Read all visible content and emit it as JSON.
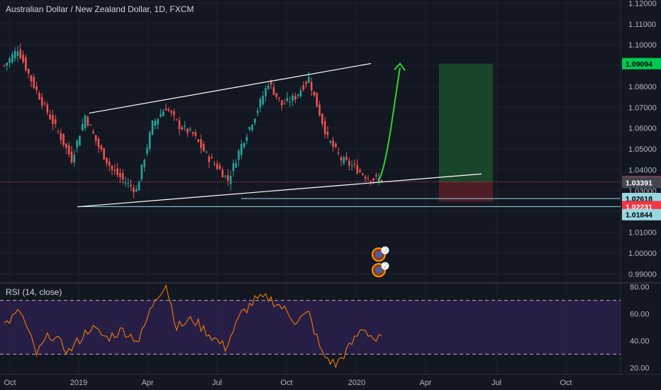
{
  "header": {
    "title": "Australian Dollar / New Zealand Dollar, 1D, FXCM"
  },
  "rsi": {
    "title": "RSI (14, close)"
  },
  "colors": {
    "background": "#131722",
    "grid": "#1e2230",
    "up": "#26a69a",
    "down": "#ef5350",
    "rsi_line": "#f57c00",
    "rsi_band": "#2a1f4a",
    "trend": "#ffffff",
    "arrow": "#2bd62b",
    "target_zone": "#1b4d2b",
    "stop_zone": "#5a1e27"
  },
  "chart_data": [
    {
      "type": "candlestick",
      "title": "Australian Dollar / New Zealand Dollar, 1D, FXCM",
      "x_tick_labels": [
        "Oct",
        "2019",
        "Apr",
        "Jul",
        "Oct",
        "2020",
        "Apr",
        "Jul",
        "Oct"
      ],
      "y_tick_labels": [
        "1.12000",
        "1.11000",
        "1.10000",
        "1.09000",
        "1.08000",
        "1.07000",
        "1.06000",
        "1.05000",
        "1.04000",
        "1.03000",
        "1.02000",
        "1.01000",
        "1.00000",
        "0.99000"
      ],
      "ylim": [
        0.986,
        1.1215
      ],
      "price_tags": [
        {
          "label": "1.09094",
          "value": 1.09094,
          "bg": "#00c853",
          "fg": "#000000"
        },
        {
          "label": "1.03417",
          "value": 1.03417,
          "bg": "#f7525f",
          "fg": "#ffffff"
        },
        {
          "label": "1.03391",
          "value": 1.03391,
          "bg": "#434651",
          "fg": "#ffffff"
        },
        {
          "label": "1.02618",
          "value": 1.02618,
          "bg": "#9ad6e0",
          "fg": "#000000"
        },
        {
          "label": "1.02231",
          "value": 1.02231,
          "bg": "#f23645",
          "fg": "#ffffff"
        },
        {
          "label": "1.01844",
          "value": 1.01844,
          "bg": "#9ad6e0",
          "fg": "#000000"
        }
      ],
      "anchors": [
        {
          "i": 0,
          "v": 1.09
        },
        {
          "i": 5,
          "v": 1.098
        },
        {
          "i": 10,
          "v": 1.083
        },
        {
          "i": 15,
          "v": 1.07
        },
        {
          "i": 20,
          "v": 1.058
        },
        {
          "i": 25,
          "v": 1.045
        },
        {
          "i": 30,
          "v": 1.066
        },
        {
          "i": 35,
          "v": 1.051
        },
        {
          "i": 40,
          "v": 1.04
        },
        {
          "i": 45,
          "v": 1.034
        },
        {
          "i": 49,
          "v": 1.03
        },
        {
          "i": 55,
          "v": 1.062
        },
        {
          "i": 60,
          "v": 1.07
        },
        {
          "i": 65,
          "v": 1.061
        },
        {
          "i": 70,
          "v": 1.057
        },
        {
          "i": 75,
          "v": 1.047
        },
        {
          "i": 80,
          "v": 1.04
        },
        {
          "i": 83,
          "v": 1.035
        },
        {
          "i": 88,
          "v": 1.052
        },
        {
          "i": 93,
          "v": 1.066
        },
        {
          "i": 98,
          "v": 1.082
        },
        {
          "i": 103,
          "v": 1.071
        },
        {
          "i": 108,
          "v": 1.075
        },
        {
          "i": 113,
          "v": 1.084
        },
        {
          "i": 115,
          "v": 1.075
        },
        {
          "i": 120,
          "v": 1.055
        },
        {
          "i": 125,
          "v": 1.045
        },
        {
          "i": 130,
          "v": 1.041
        },
        {
          "i": 135,
          "v": 1.036
        },
        {
          "i": 140,
          "v": 1.035
        }
      ],
      "drawings": {
        "upper_channel": [
          [
            1.0672,
            1.091
          ]
        ],
        "lower_channel": [
          [
            1.0222,
            1.038
          ]
        ],
        "target_level": 1.09094,
        "entry_level": 1.03417,
        "stop_level": 1.02618
      },
      "events": [
        {
          "badge": "3"
        },
        {
          "badge": "2"
        }
      ]
    },
    {
      "type": "line",
      "title": "RSI (14, close)",
      "y_tick_labels": [
        "80.00",
        "60.00",
        "40.00",
        "20.00"
      ],
      "ylim": [
        15,
        83
      ],
      "bands": {
        "upper": 70,
        "lower": 30
      },
      "anchors": [
        {
          "i": 0,
          "v": 52
        },
        {
          "i": 6,
          "v": 62
        },
        {
          "i": 12,
          "v": 30
        },
        {
          "i": 17,
          "v": 45
        },
        {
          "i": 24,
          "v": 32
        },
        {
          "i": 32,
          "v": 50
        },
        {
          "i": 38,
          "v": 42
        },
        {
          "i": 44,
          "v": 48
        },
        {
          "i": 50,
          "v": 40
        },
        {
          "i": 56,
          "v": 72
        },
        {
          "i": 60,
          "v": 82
        },
        {
          "i": 64,
          "v": 50
        },
        {
          "i": 70,
          "v": 56
        },
        {
          "i": 76,
          "v": 45
        },
        {
          "i": 82,
          "v": 35
        },
        {
          "i": 88,
          "v": 60
        },
        {
          "i": 93,
          "v": 70
        },
        {
          "i": 98,
          "v": 72
        },
        {
          "i": 103,
          "v": 65
        },
        {
          "i": 108,
          "v": 55
        },
        {
          "i": 113,
          "v": 60
        },
        {
          "i": 118,
          "v": 30
        },
        {
          "i": 123,
          "v": 22
        },
        {
          "i": 128,
          "v": 35
        },
        {
          "i": 133,
          "v": 50
        },
        {
          "i": 138,
          "v": 40
        },
        {
          "i": 140,
          "v": 42
        }
      ]
    }
  ]
}
